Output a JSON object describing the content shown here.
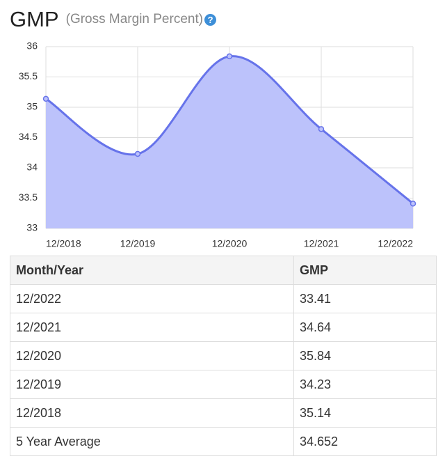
{
  "header": {
    "title": "GMP",
    "subtitle": "(Gross Margin Percent)",
    "help_icon": "?"
  },
  "chart_data": {
    "type": "area",
    "categories": [
      "12/2018",
      "12/2019",
      "12/2020",
      "12/2021",
      "12/2022"
    ],
    "values": [
      35.14,
      34.23,
      35.84,
      34.64,
      33.41
    ],
    "color": "#6673ea",
    "fill": "#bcc2fb",
    "ylim": [
      33,
      36
    ],
    "yticks": [
      33,
      33.5,
      34,
      34.5,
      35,
      35.5,
      36
    ],
    "grid": true
  },
  "table": {
    "columns": [
      "Month/Year",
      "GMP"
    ],
    "rows": [
      [
        "12/2022",
        "33.41"
      ],
      [
        "12/2021",
        "34.64"
      ],
      [
        "12/2020",
        "35.84"
      ],
      [
        "12/2019",
        "34.23"
      ],
      [
        "12/2018",
        "35.14"
      ],
      [
        "5 Year Average",
        "34.652"
      ]
    ]
  }
}
